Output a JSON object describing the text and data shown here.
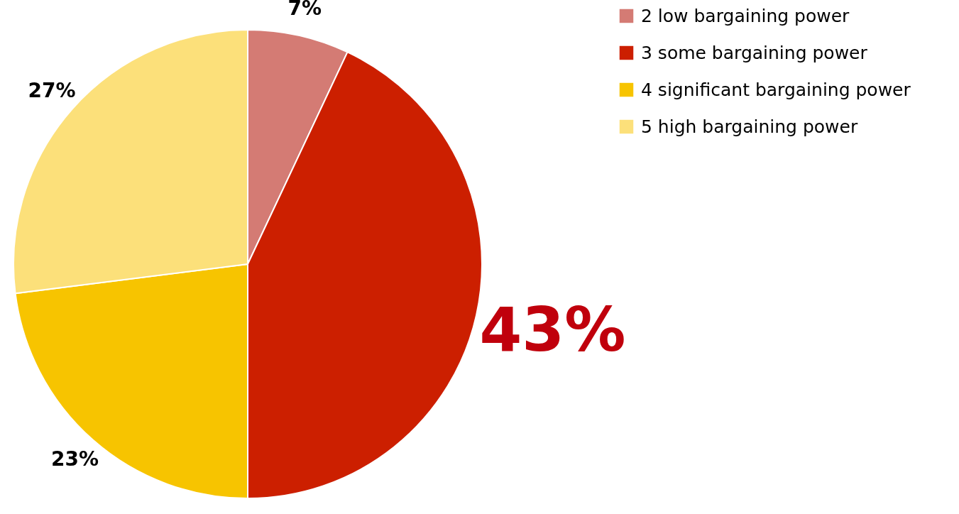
{
  "chart_data": {
    "type": "pie",
    "categories": [
      "2 low bargaining power",
      "3 some bargaining power",
      "4 significant bargaining power",
      "5 high bargaining power"
    ],
    "values": [
      7,
      43,
      23,
      27
    ],
    "colors": [
      "#d47b74",
      "#cc1f00",
      "#f7c400",
      "#fce07a"
    ],
    "value_labels": [
      "7%",
      "43%",
      "23%",
      "27%"
    ],
    "legend": "top right"
  }
}
